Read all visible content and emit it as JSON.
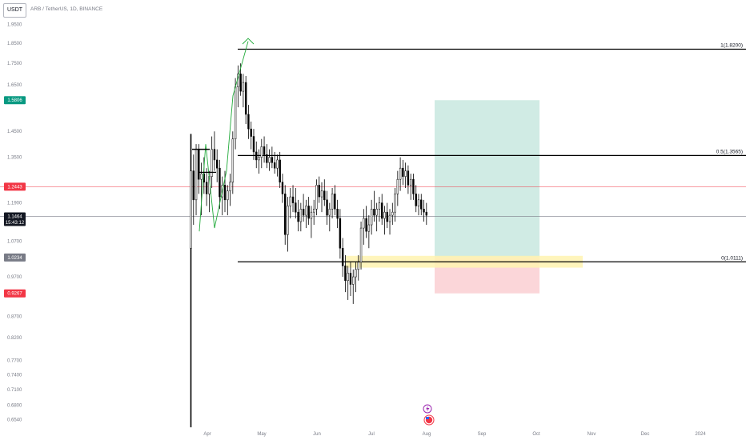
{
  "header": {
    "symbol_button": "USDT",
    "title": "ARB / TetherUS, 1D, BINANCE"
  },
  "chart_data": {
    "type": "candlestick",
    "title": "ARB / TetherUS, 1D, BINANCE",
    "y_scale": "log",
    "ylim": [
      0.6345,
      1.986
    ],
    "price_ticks": [
      1.95,
      1.85,
      1.75,
      1.65,
      1.5806,
      1.45,
      1.35,
      1.2443,
      1.19,
      1.1464,
      1.07,
      1.0234,
      0.97,
      0.9267,
      0.87,
      0.82,
      0.77,
      0.74,
      0.71,
      0.68,
      0.654
    ],
    "price_tick_labels": [
      "1.9500",
      "1.8500",
      "1.7500",
      "1.6500",
      "",
      "1.4500",
      "1.3500",
      "",
      "1.1900",
      "",
      "1.0700",
      "",
      "0.9700",
      "",
      "0.8700",
      "0.8200",
      "0.7700",
      "0.7400",
      "0.7100",
      "0.6800",
      "0.6540"
    ],
    "x_labels": [
      "Apr",
      "May",
      "Jun",
      "Jul",
      "Aug",
      "Sep",
      "Oct",
      "Nov",
      "Dec",
      "2024"
    ],
    "price_badges": [
      {
        "name": "target",
        "value": "1.5806",
        "price": 1.5806,
        "color": "#089981"
      },
      {
        "name": "entry",
        "value": "1.2443",
        "price": 1.2443,
        "color": "#f23645"
      },
      {
        "name": "last",
        "value": "1.1464",
        "time": "15:43:12",
        "price": 1.1464,
        "color": "#131722"
      },
      {
        "name": "level",
        "value": "1.0234",
        "price": 1.0234,
        "color": "#787b86"
      },
      {
        "name": "stop",
        "value": "0.9267",
        "price": 0.9267,
        "color": "#f23645"
      }
    ],
    "fib_levels": [
      {
        "ratio": "1",
        "price": 1.82,
        "label": "1(1.8200)"
      },
      {
        "ratio": "0.5",
        "price": 1.3565,
        "label": "0.5(1.3565)"
      },
      {
        "ratio": "0",
        "price": 1.0111,
        "label": "0(1.0111)"
      }
    ],
    "horizontal_lines": [
      {
        "price": 1.2443,
        "color": "#f23645"
      },
      {
        "price": 1.1464,
        "color": "#787b86"
      }
    ],
    "position_tool": {
      "entry": 1.0234,
      "target": 1.5806,
      "stop": 0.9267,
      "profit_color": "#b7e1d6",
      "loss_color": "#f9c8cc"
    },
    "zone": {
      "from": 0.995,
      "to": 1.028,
      "color": "#fff3b0"
    },
    "candles": [
      [
        1.05,
        1.44,
        0.64,
        1.3
      ],
      [
        1.3,
        1.36,
        1.12,
        1.2
      ],
      [
        1.2,
        1.4,
        1.15,
        1.38
      ],
      [
        1.38,
        1.4,
        1.22,
        1.27
      ],
      [
        1.27,
        1.33,
        1.15,
        1.29
      ],
      [
        1.29,
        1.35,
        1.22,
        1.26
      ],
      [
        1.26,
        1.31,
        1.18,
        1.22
      ],
      [
        1.22,
        1.3,
        1.16,
        1.28
      ],
      [
        1.28,
        1.43,
        1.24,
        1.38
      ],
      [
        1.38,
        1.45,
        1.3,
        1.34
      ],
      [
        1.34,
        1.38,
        1.26,
        1.31
      ],
      [
        1.31,
        1.34,
        1.17,
        1.21
      ],
      [
        1.21,
        1.28,
        1.15,
        1.25
      ],
      [
        1.25,
        1.3,
        1.16,
        1.2
      ],
      [
        1.2,
        1.25,
        1.15,
        1.23
      ],
      [
        1.23,
        1.29,
        1.18,
        1.26
      ],
      [
        1.26,
        1.45,
        1.22,
        1.42
      ],
      [
        1.42,
        1.68,
        1.38,
        1.64
      ],
      [
        1.64,
        1.74,
        1.55,
        1.7
      ],
      [
        1.7,
        1.75,
        1.6,
        1.62
      ],
      [
        1.62,
        1.7,
        1.55,
        1.66
      ],
      [
        1.66,
        1.69,
        1.48,
        1.52
      ],
      [
        1.52,
        1.56,
        1.42,
        1.46
      ],
      [
        1.46,
        1.49,
        1.38,
        1.43
      ],
      [
        1.43,
        1.46,
        1.34,
        1.37
      ],
      [
        1.37,
        1.41,
        1.31,
        1.34
      ],
      [
        1.34,
        1.38,
        1.29,
        1.35
      ],
      [
        1.35,
        1.42,
        1.31,
        1.39
      ],
      [
        1.39,
        1.43,
        1.33,
        1.36
      ],
      [
        1.36,
        1.4,
        1.31,
        1.33
      ],
      [
        1.33,
        1.38,
        1.3,
        1.35
      ],
      [
        1.35,
        1.39,
        1.31,
        1.33
      ],
      [
        1.33,
        1.37,
        1.29,
        1.31
      ],
      [
        1.31,
        1.36,
        1.28,
        1.34
      ],
      [
        1.34,
        1.37,
        1.24,
        1.26
      ],
      [
        1.26,
        1.29,
        1.19,
        1.22
      ],
      [
        1.22,
        1.25,
        1.06,
        1.09
      ],
      [
        1.09,
        1.21,
        1.04,
        1.18
      ],
      [
        1.18,
        1.24,
        1.14,
        1.21
      ],
      [
        1.21,
        1.25,
        1.16,
        1.19
      ],
      [
        1.19,
        1.24,
        1.14,
        1.16
      ],
      [
        1.16,
        1.2,
        1.1,
        1.13
      ],
      [
        1.13,
        1.19,
        1.1,
        1.17
      ],
      [
        1.17,
        1.22,
        1.13,
        1.15
      ],
      [
        1.15,
        1.2,
        1.11,
        1.18
      ],
      [
        1.18,
        1.21,
        1.12,
        1.14
      ],
      [
        1.14,
        1.18,
        1.08,
        1.16
      ],
      [
        1.16,
        1.2,
        1.12,
        1.17
      ],
      [
        1.17,
        1.27,
        1.15,
        1.25
      ],
      [
        1.25,
        1.28,
        1.19,
        1.21
      ],
      [
        1.21,
        1.26,
        1.16,
        1.23
      ],
      [
        1.23,
        1.27,
        1.18,
        1.2
      ],
      [
        1.2,
        1.23,
        1.12,
        1.15
      ],
      [
        1.15,
        1.19,
        1.1,
        1.17
      ],
      [
        1.17,
        1.24,
        1.14,
        1.22
      ],
      [
        1.22,
        1.25,
        1.15,
        1.17
      ],
      [
        1.17,
        1.2,
        1.11,
        1.14
      ],
      [
        1.14,
        1.17,
        1.02,
        1.05
      ],
      [
        1.05,
        1.08,
        0.97,
        1.0
      ],
      [
        1.0,
        1.03,
        0.93,
        0.96
      ],
      [
        0.96,
        1.0,
        0.91,
        0.98
      ],
      [
        0.98,
        1.01,
        0.92,
        0.95
      ],
      [
        0.95,
        0.99,
        0.9,
        0.97
      ],
      [
        0.97,
        1.01,
        0.93,
        0.99
      ],
      [
        0.99,
        1.03,
        0.96,
        1.01
      ],
      [
        1.01,
        1.13,
        0.99,
        1.11
      ],
      [
        1.11,
        1.17,
        1.06,
        1.14
      ],
      [
        1.14,
        1.18,
        1.08,
        1.1
      ],
      [
        1.1,
        1.15,
        1.05,
        1.12
      ],
      [
        1.12,
        1.2,
        1.09,
        1.17
      ],
      [
        1.17,
        1.23,
        1.13,
        1.15
      ],
      [
        1.15,
        1.19,
        1.1,
        1.17
      ],
      [
        1.17,
        1.21,
        1.13,
        1.19
      ],
      [
        1.19,
        1.22,
        1.12,
        1.14
      ],
      [
        1.14,
        1.18,
        1.09,
        1.16
      ],
      [
        1.16,
        1.19,
        1.11,
        1.13
      ],
      [
        1.13,
        1.17,
        1.09,
        1.15
      ],
      [
        1.15,
        1.19,
        1.12,
        1.16
      ],
      [
        1.16,
        1.24,
        1.13,
        1.22
      ],
      [
        1.22,
        1.3,
        1.18,
        1.27
      ],
      [
        1.27,
        1.35,
        1.23,
        1.31
      ],
      [
        1.31,
        1.34,
        1.25,
        1.28
      ],
      [
        1.28,
        1.33,
        1.24,
        1.3
      ],
      [
        1.3,
        1.32,
        1.22,
        1.25
      ],
      [
        1.25,
        1.29,
        1.2,
        1.27
      ],
      [
        1.27,
        1.29,
        1.2,
        1.22
      ],
      [
        1.22,
        1.25,
        1.16,
        1.18
      ],
      [
        1.18,
        1.22,
        1.15,
        1.2
      ],
      [
        1.2,
        1.22,
        1.15,
        1.17
      ],
      [
        1.17,
        1.2,
        1.13,
        1.16
      ],
      [
        1.16,
        1.19,
        1.12,
        1.15
      ]
    ]
  }
}
